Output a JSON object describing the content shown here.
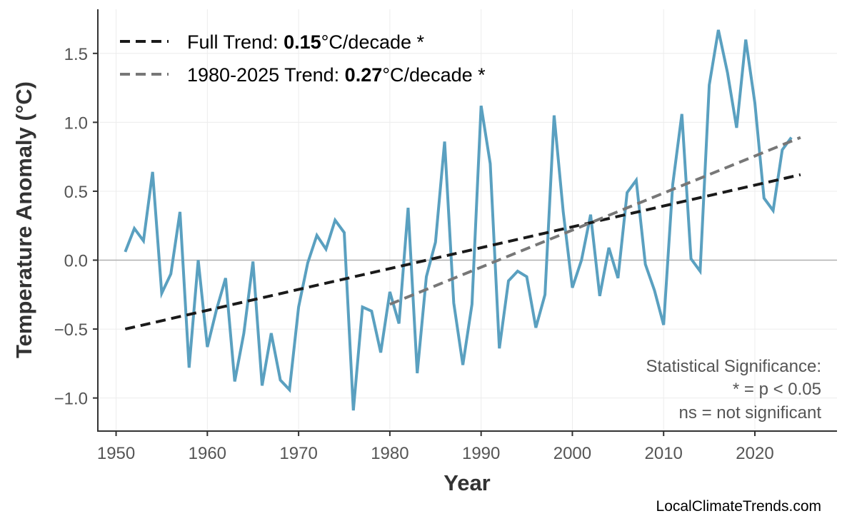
{
  "chart_data": {
    "type": "line",
    "title": "",
    "xlabel": "Year",
    "ylabel": "Temperature Anomaly (°C)",
    "xlim": [
      1948,
      2029
    ],
    "ylim": [
      -1.24,
      1.82
    ],
    "grid": true,
    "legend_placement": "top-left",
    "x_ticks": [
      1950,
      1960,
      1970,
      1980,
      1990,
      2000,
      2010,
      2020
    ],
    "y_ticks": [
      -1.0,
      -0.5,
      0.0,
      0.5,
      1.0,
      1.5
    ],
    "y_tick_labels": [
      "−1.0",
      "−0.5",
      "0.0",
      "0.5",
      "1.0",
      "1.5"
    ],
    "colors": {
      "series": "#5aa0c0",
      "full_trend": "#1a1a1a",
      "recent_trend": "#777777",
      "zero_line": "#b0b0b0",
      "grid": "#ececec"
    },
    "series": [
      {
        "x": [
          1951,
          1952,
          1953,
          1954,
          1955,
          1956,
          1957,
          1958,
          1959,
          1960,
          1961,
          1962,
          1963,
          1964,
          1965,
          1966,
          1967,
          1968,
          1969,
          1970,
          1971,
          1972,
          1973,
          1974,
          1975,
          1976,
          1977,
          1978,
          1979,
          1980,
          1981,
          1982,
          1983,
          1984,
          1985,
          1986,
          1987,
          1988,
          1989,
          1990,
          1991,
          1992,
          1993,
          1994,
          1995,
          1996,
          1997,
          1998,
          1999,
          2000,
          2001,
          2002,
          2003,
          2004,
          2005,
          2006,
          2007,
          2008,
          2009,
          2010,
          2011,
          2012,
          2013,
          2014,
          2015,
          2016,
          2017,
          2018,
          2019,
          2020,
          2021,
          2022,
          2023,
          2024
        ],
        "values": [
          0.06,
          0.23,
          0.14,
          0.64,
          -0.24,
          -0.1,
          0.35,
          -0.78,
          0.0,
          -0.63,
          -0.36,
          -0.13,
          -0.88,
          -0.53,
          -0.01,
          -0.91,
          -0.53,
          -0.87,
          -0.94,
          -0.34,
          -0.02,
          0.18,
          0.08,
          0.29,
          0.2,
          -1.09,
          -0.34,
          -0.37,
          -0.67,
          -0.23,
          -0.46,
          0.38,
          -0.82,
          -0.12,
          0.13,
          0.86,
          -0.31,
          -0.76,
          -0.32,
          1.12,
          0.7,
          -0.64,
          -0.15,
          -0.08,
          -0.12,
          -0.49,
          -0.25,
          1.05,
          0.35,
          -0.2,
          0.0,
          0.33,
          -0.26,
          0.09,
          -0.13,
          0.49,
          0.58,
          -0.03,
          -0.22,
          -0.47,
          0.55,
          1.06,
          0.01,
          -0.08,
          1.27,
          1.67,
          1.36,
          0.96,
          1.6,
          1.14,
          0.45,
          0.36,
          0.8,
          0.89
        ]
      }
    ],
    "trends": [
      {
        "label_prefix": "Full Trend: ",
        "value": "0.15",
        "label_suffix": "°C/decade *",
        "x": [
          1951,
          2025
        ],
        "y": [
          -0.5,
          0.62
        ]
      },
      {
        "label_prefix": "1980-2025 Trend: ",
        "value": "0.27",
        "label_suffix": "°C/decade *",
        "x": [
          1980,
          2025
        ],
        "y": [
          -0.32,
          0.89
        ]
      }
    ],
    "annotations": {
      "significance": [
        "Statistical Significance:",
        "* = p < 0.05",
        "ns = not significant"
      ],
      "source": "LocalClimateTrends.com"
    }
  }
}
